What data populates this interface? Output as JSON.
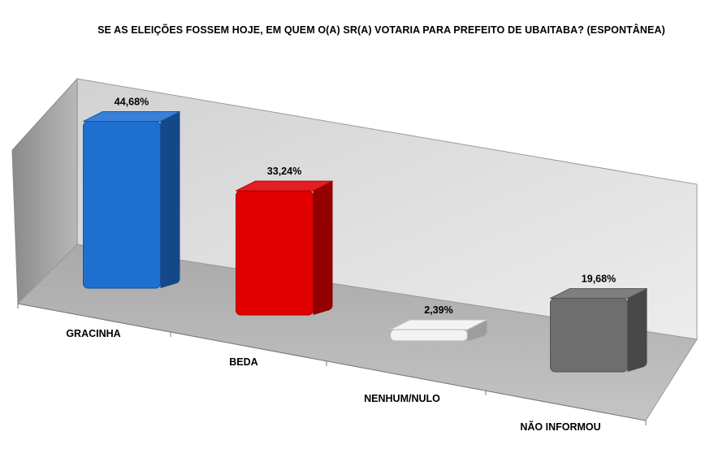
{
  "chart_data": {
    "type": "bar",
    "title": "SE AS ELEIÇÕES FOSSEM HOJE, EM QUEM O(A) SR(A) VOTARIA PARA PREFEITO DE UBAITABA? (ESPONTÂNEA)",
    "categories": [
      "GRACINHA",
      "BEDA",
      "NENHUM/NULO",
      "NÃO INFORMOU"
    ],
    "values": [
      44.68,
      33.24,
      2.39,
      19.68
    ],
    "value_labels": [
      "44,68%",
      "33,24%",
      "2,39%",
      "19,68%"
    ],
    "bar_colors": [
      "#1f6fd1",
      "#e00000",
      "#f2f2f2",
      "#6e6e6e"
    ],
    "ylim": [
      0,
      50
    ],
    "grid": false,
    "legend": "none",
    "style": "3d-column"
  }
}
